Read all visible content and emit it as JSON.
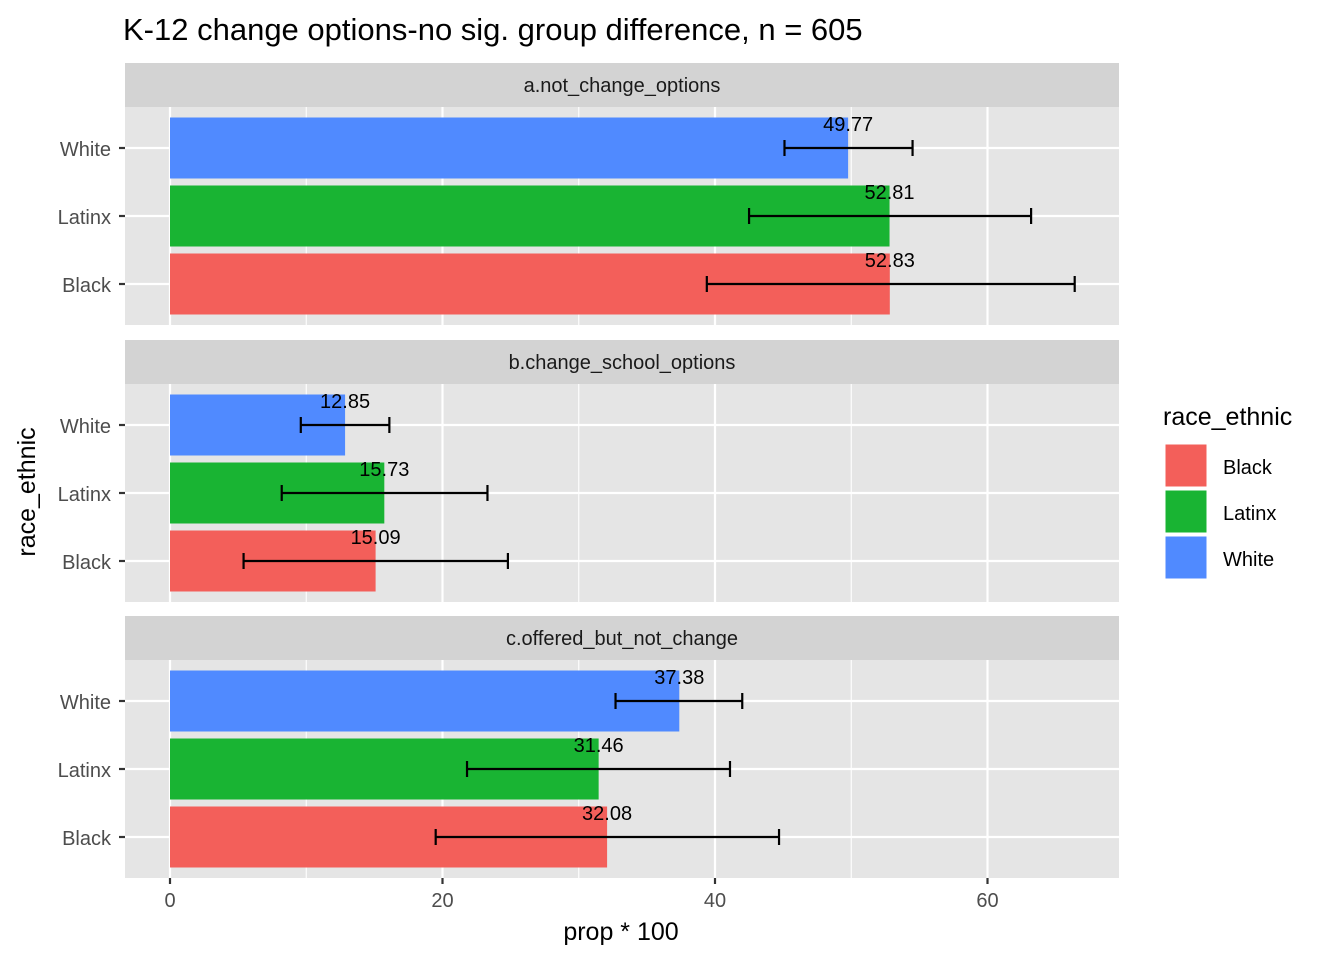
{
  "chart_data": {
    "type": "bar",
    "title": "K-12 change options-no sig. group difference, n = 605",
    "xlabel": "prop * 100",
    "ylabel": "race_ethnic",
    "xlim": [
      -3.3,
      69.6
    ],
    "x_ticks": [
      "0",
      "20",
      "40",
      "60"
    ],
    "x_tick_values": [
      0,
      20,
      40,
      60
    ],
    "grid": true,
    "orientation": "horizontal",
    "categories": [
      "White",
      "Latinx",
      "Black"
    ],
    "facets": [
      {
        "label": "a.not_change_options",
        "bars": [
          {
            "group": "White",
            "value": 49.77,
            "label": "49.77",
            "err_low": 45.1,
            "err_high": 54.5
          },
          {
            "group": "Latinx",
            "value": 52.81,
            "label": "52.81",
            "err_low": 42.5,
            "err_high": 63.2
          },
          {
            "group": "Black",
            "value": 52.83,
            "label": "52.83",
            "err_low": 39.4,
            "err_high": 66.4
          }
        ]
      },
      {
        "label": "b.change_school_options",
        "bars": [
          {
            "group": "White",
            "value": 12.85,
            "label": "12.85",
            "err_low": 9.6,
            "err_high": 16.1
          },
          {
            "group": "Latinx",
            "value": 15.73,
            "label": "15.73",
            "err_low": 8.2,
            "err_high": 23.3
          },
          {
            "group": "Black",
            "value": 15.09,
            "label": "15.09",
            "err_low": 5.4,
            "err_high": 24.8
          }
        ]
      },
      {
        "label": "c.offered_but_not_change",
        "bars": [
          {
            "group": "White",
            "value": 37.38,
            "label": "37.38",
            "err_low": 32.7,
            "err_high": 42.0
          },
          {
            "group": "Latinx",
            "value": 31.46,
            "label": "31.46",
            "err_low": 21.8,
            "err_high": 41.1
          },
          {
            "group": "Black",
            "value": 32.08,
            "label": "32.08",
            "err_low": 19.5,
            "err_high": 44.7
          }
        ]
      }
    ],
    "legend": {
      "title": "race_ethnic",
      "placement": "right",
      "items": [
        {
          "name": "Black",
          "color": "#F35F5A"
        },
        {
          "name": "Latinx",
          "color": "#19B433"
        },
        {
          "name": "White",
          "color": "#508AFF"
        }
      ]
    },
    "colors": {
      "Black": "#F35F5A",
      "Latinx": "#19B433",
      "White": "#508AFF",
      "panel_bg": "#E5E5E5",
      "strip_bg": "#D3D3D3",
      "grid": "#FFFFFF"
    }
  }
}
